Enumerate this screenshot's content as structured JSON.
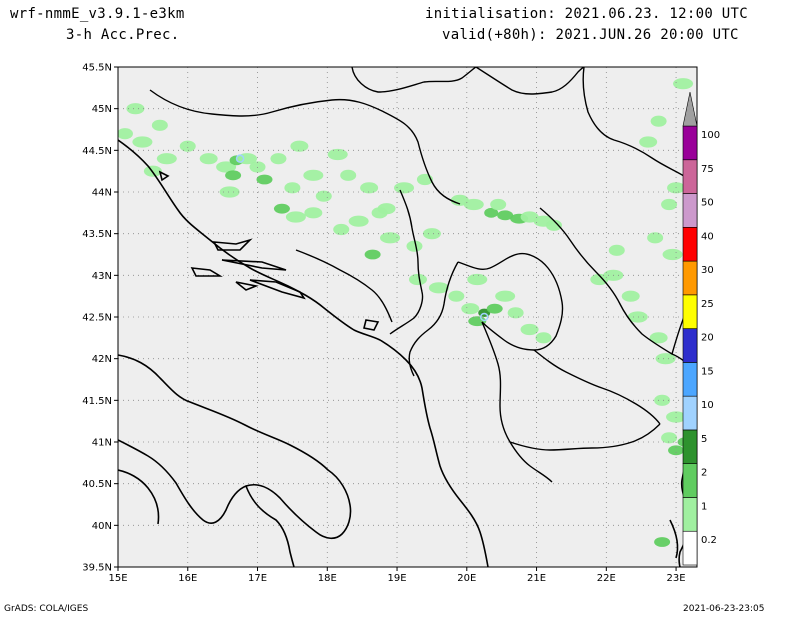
{
  "header": {
    "model": "wrf-nmmE_v3.9.1-e3km",
    "field": "3-h Acc.Prec.",
    "init": "initialisation: 2021.06.23.  12:00 UTC",
    "valid": "valid(+80h): 2021.JUN.26 20:00 UTC"
  },
  "footer": {
    "left": "GrADS: COLA/IGES",
    "right": "2021-06-23-23:05"
  },
  "map": {
    "lon_range": [
      15,
      23.3
    ],
    "lat_range": [
      39.5,
      45.5
    ],
    "lon_ticks": [
      15,
      16,
      17,
      18,
      19,
      20,
      21,
      22,
      23
    ],
    "lat_ticks": [
      39.5,
      40,
      40.5,
      41,
      41.5,
      42,
      42.5,
      43,
      43.5,
      44,
      44.5,
      45,
      45.5
    ],
    "lon_labels": [
      "15E",
      "16E",
      "17E",
      "18E",
      "19E",
      "20E",
      "21E",
      "22E",
      "23E"
    ],
    "lat_labels": [
      "39.5N",
      "40N",
      "40.5N",
      "41N",
      "41.5N",
      "42N",
      "42.5N",
      "43N",
      "43.5N",
      "44N",
      "44.5N",
      "45N",
      "45.5N"
    ],
    "background_color": "#eeeeee",
    "grid": true
  },
  "legend": {
    "labels": [
      "0.2",
      "1",
      "2",
      "5",
      "10",
      "15",
      "20",
      "25",
      "30",
      "40",
      "50",
      "75",
      "100"
    ],
    "colors": [
      "#ffffff",
      "#a0f0a0",
      "#60cc60",
      "#2e922e",
      "#a0d2ff",
      "#4ca6ff",
      "#2e2ecc",
      "#ffff00",
      "#ff9900",
      "#ff0000",
      "#cc99cc",
      "#cc6699",
      "#990099",
      "#a0a0a0"
    ]
  },
  "precip": [
    {
      "lon": 15.1,
      "lat": 44.7,
      "level": 1
    },
    {
      "lon": 15.25,
      "lat": 45.0,
      "level": 1
    },
    {
      "lon": 15.35,
      "lat": 44.6,
      "level": 1
    },
    {
      "lon": 15.6,
      "lat": 44.8,
      "level": 1
    },
    {
      "lon": 15.5,
      "lat": 44.25,
      "level": 1
    },
    {
      "lon": 15.7,
      "lat": 44.4,
      "level": 1
    },
    {
      "lon": 16.0,
      "lat": 44.55,
      "level": 1
    },
    {
      "lon": 16.3,
      "lat": 44.4,
      "level": 1
    },
    {
      "lon": 16.55,
      "lat": 44.3,
      "level": 1
    },
    {
      "lon": 16.7,
      "lat": 44.38,
      "level": 2
    },
    {
      "lon": 16.65,
      "lat": 44.2,
      "level": 2
    },
    {
      "lon": 16.85,
      "lat": 44.4,
      "level": 1
    },
    {
      "lon": 17.0,
      "lat": 44.3,
      "level": 1
    },
    {
      "lon": 17.1,
      "lat": 44.15,
      "level": 2
    },
    {
      "lon": 16.6,
      "lat": 44.0,
      "level": 1
    },
    {
      "lon": 17.3,
      "lat": 44.4,
      "level": 1
    },
    {
      "lon": 17.6,
      "lat": 44.55,
      "level": 1
    },
    {
      "lon": 17.8,
      "lat": 44.2,
      "level": 1
    },
    {
      "lon": 17.5,
      "lat": 44.05,
      "level": 1
    },
    {
      "lon": 17.35,
      "lat": 43.8,
      "level": 2
    },
    {
      "lon": 17.55,
      "lat": 43.7,
      "level": 1
    },
    {
      "lon": 17.95,
      "lat": 43.95,
      "level": 1
    },
    {
      "lon": 17.8,
      "lat": 43.75,
      "level": 1
    },
    {
      "lon": 18.15,
      "lat": 44.45,
      "level": 1
    },
    {
      "lon": 18.3,
      "lat": 44.2,
      "level": 1
    },
    {
      "lon": 18.6,
      "lat": 44.05,
      "level": 1
    },
    {
      "lon": 18.45,
      "lat": 43.65,
      "level": 1
    },
    {
      "lon": 18.75,
      "lat": 43.75,
      "level": 1
    },
    {
      "lon": 18.65,
      "lat": 43.25,
      "level": 2
    },
    {
      "lon": 18.9,
      "lat": 43.45,
      "level": 1
    },
    {
      "lon": 19.25,
      "lat": 43.35,
      "level": 1
    },
    {
      "lon": 19.5,
      "lat": 43.5,
      "level": 1
    },
    {
      "lon": 19.1,
      "lat": 44.05,
      "level": 1
    },
    {
      "lon": 19.4,
      "lat": 44.15,
      "level": 1
    },
    {
      "lon": 19.9,
      "lat": 43.9,
      "level": 1
    },
    {
      "lon": 20.1,
      "lat": 43.85,
      "level": 1
    },
    {
      "lon": 20.35,
      "lat": 43.75,
      "level": 2
    },
    {
      "lon": 20.55,
      "lat": 43.72,
      "level": 2
    },
    {
      "lon": 20.75,
      "lat": 43.68,
      "level": 2
    },
    {
      "lon": 20.45,
      "lat": 43.85,
      "level": 1
    },
    {
      "lon": 20.9,
      "lat": 43.7,
      "level": 1
    },
    {
      "lon": 21.1,
      "lat": 43.65,
      "level": 1
    },
    {
      "lon": 21.25,
      "lat": 43.6,
      "level": 1
    },
    {
      "lon": 19.3,
      "lat": 42.95,
      "level": 1
    },
    {
      "lon": 19.6,
      "lat": 42.85,
      "level": 1
    },
    {
      "lon": 19.85,
      "lat": 42.75,
      "level": 1
    },
    {
      "lon": 20.05,
      "lat": 42.6,
      "level": 1
    },
    {
      "lon": 20.15,
      "lat": 42.45,
      "level": 2
    },
    {
      "lon": 20.25,
      "lat": 42.55,
      "level": 3
    },
    {
      "lon": 20.4,
      "lat": 42.6,
      "level": 2
    },
    {
      "lon": 20.55,
      "lat": 42.75,
      "level": 1
    },
    {
      "lon": 20.7,
      "lat": 42.55,
      "level": 1
    },
    {
      "lon": 20.9,
      "lat": 42.35,
      "level": 1
    },
    {
      "lon": 20.15,
      "lat": 42.95,
      "level": 1
    },
    {
      "lon": 21.1,
      "lat": 42.25,
      "level": 1
    },
    {
      "lon": 21.9,
      "lat": 42.95,
      "level": 1
    },
    {
      "lon": 22.1,
      "lat": 43.0,
      "level": 1
    },
    {
      "lon": 22.15,
      "lat": 43.3,
      "level": 1
    },
    {
      "lon": 22.35,
      "lat": 42.75,
      "level": 1
    },
    {
      "lon": 22.45,
      "lat": 42.5,
      "level": 1
    },
    {
      "lon": 22.7,
      "lat": 43.45,
      "level": 1
    },
    {
      "lon": 22.75,
      "lat": 42.25,
      "level": 1
    },
    {
      "lon": 22.85,
      "lat": 42.0,
      "level": 1
    },
    {
      "lon": 22.9,
      "lat": 43.85,
      "level": 1
    },
    {
      "lon": 23.0,
      "lat": 44.05,
      "level": 1
    },
    {
      "lon": 23.0,
      "lat": 41.3,
      "level": 1
    },
    {
      "lon": 22.9,
      "lat": 41.05,
      "level": 1
    },
    {
      "lon": 23.0,
      "lat": 40.9,
      "level": 2
    },
    {
      "lon": 23.15,
      "lat": 41.0,
      "level": 2
    },
    {
      "lon": 22.8,
      "lat": 41.5,
      "level": 1
    },
    {
      "lon": 22.8,
      "lat": 39.8,
      "level": 2
    },
    {
      "lon": 23.1,
      "lat": 45.3,
      "level": 1
    },
    {
      "lon": 22.75,
      "lat": 44.85,
      "level": 1
    },
    {
      "lon": 22.6,
      "lat": 44.6,
      "level": 1
    },
    {
      "lon": 22.95,
      "lat": 43.25,
      "level": 1
    },
    {
      "lon": 18.2,
      "lat": 43.55,
      "level": 1
    },
    {
      "lon": 18.85,
      "lat": 43.8,
      "level": 1
    }
  ],
  "high_marks": [
    {
      "lon": 16.75,
      "lat": 44.4,
      "level": 4
    },
    {
      "lon": 20.25,
      "lat": 42.5,
      "level": 4
    }
  ]
}
